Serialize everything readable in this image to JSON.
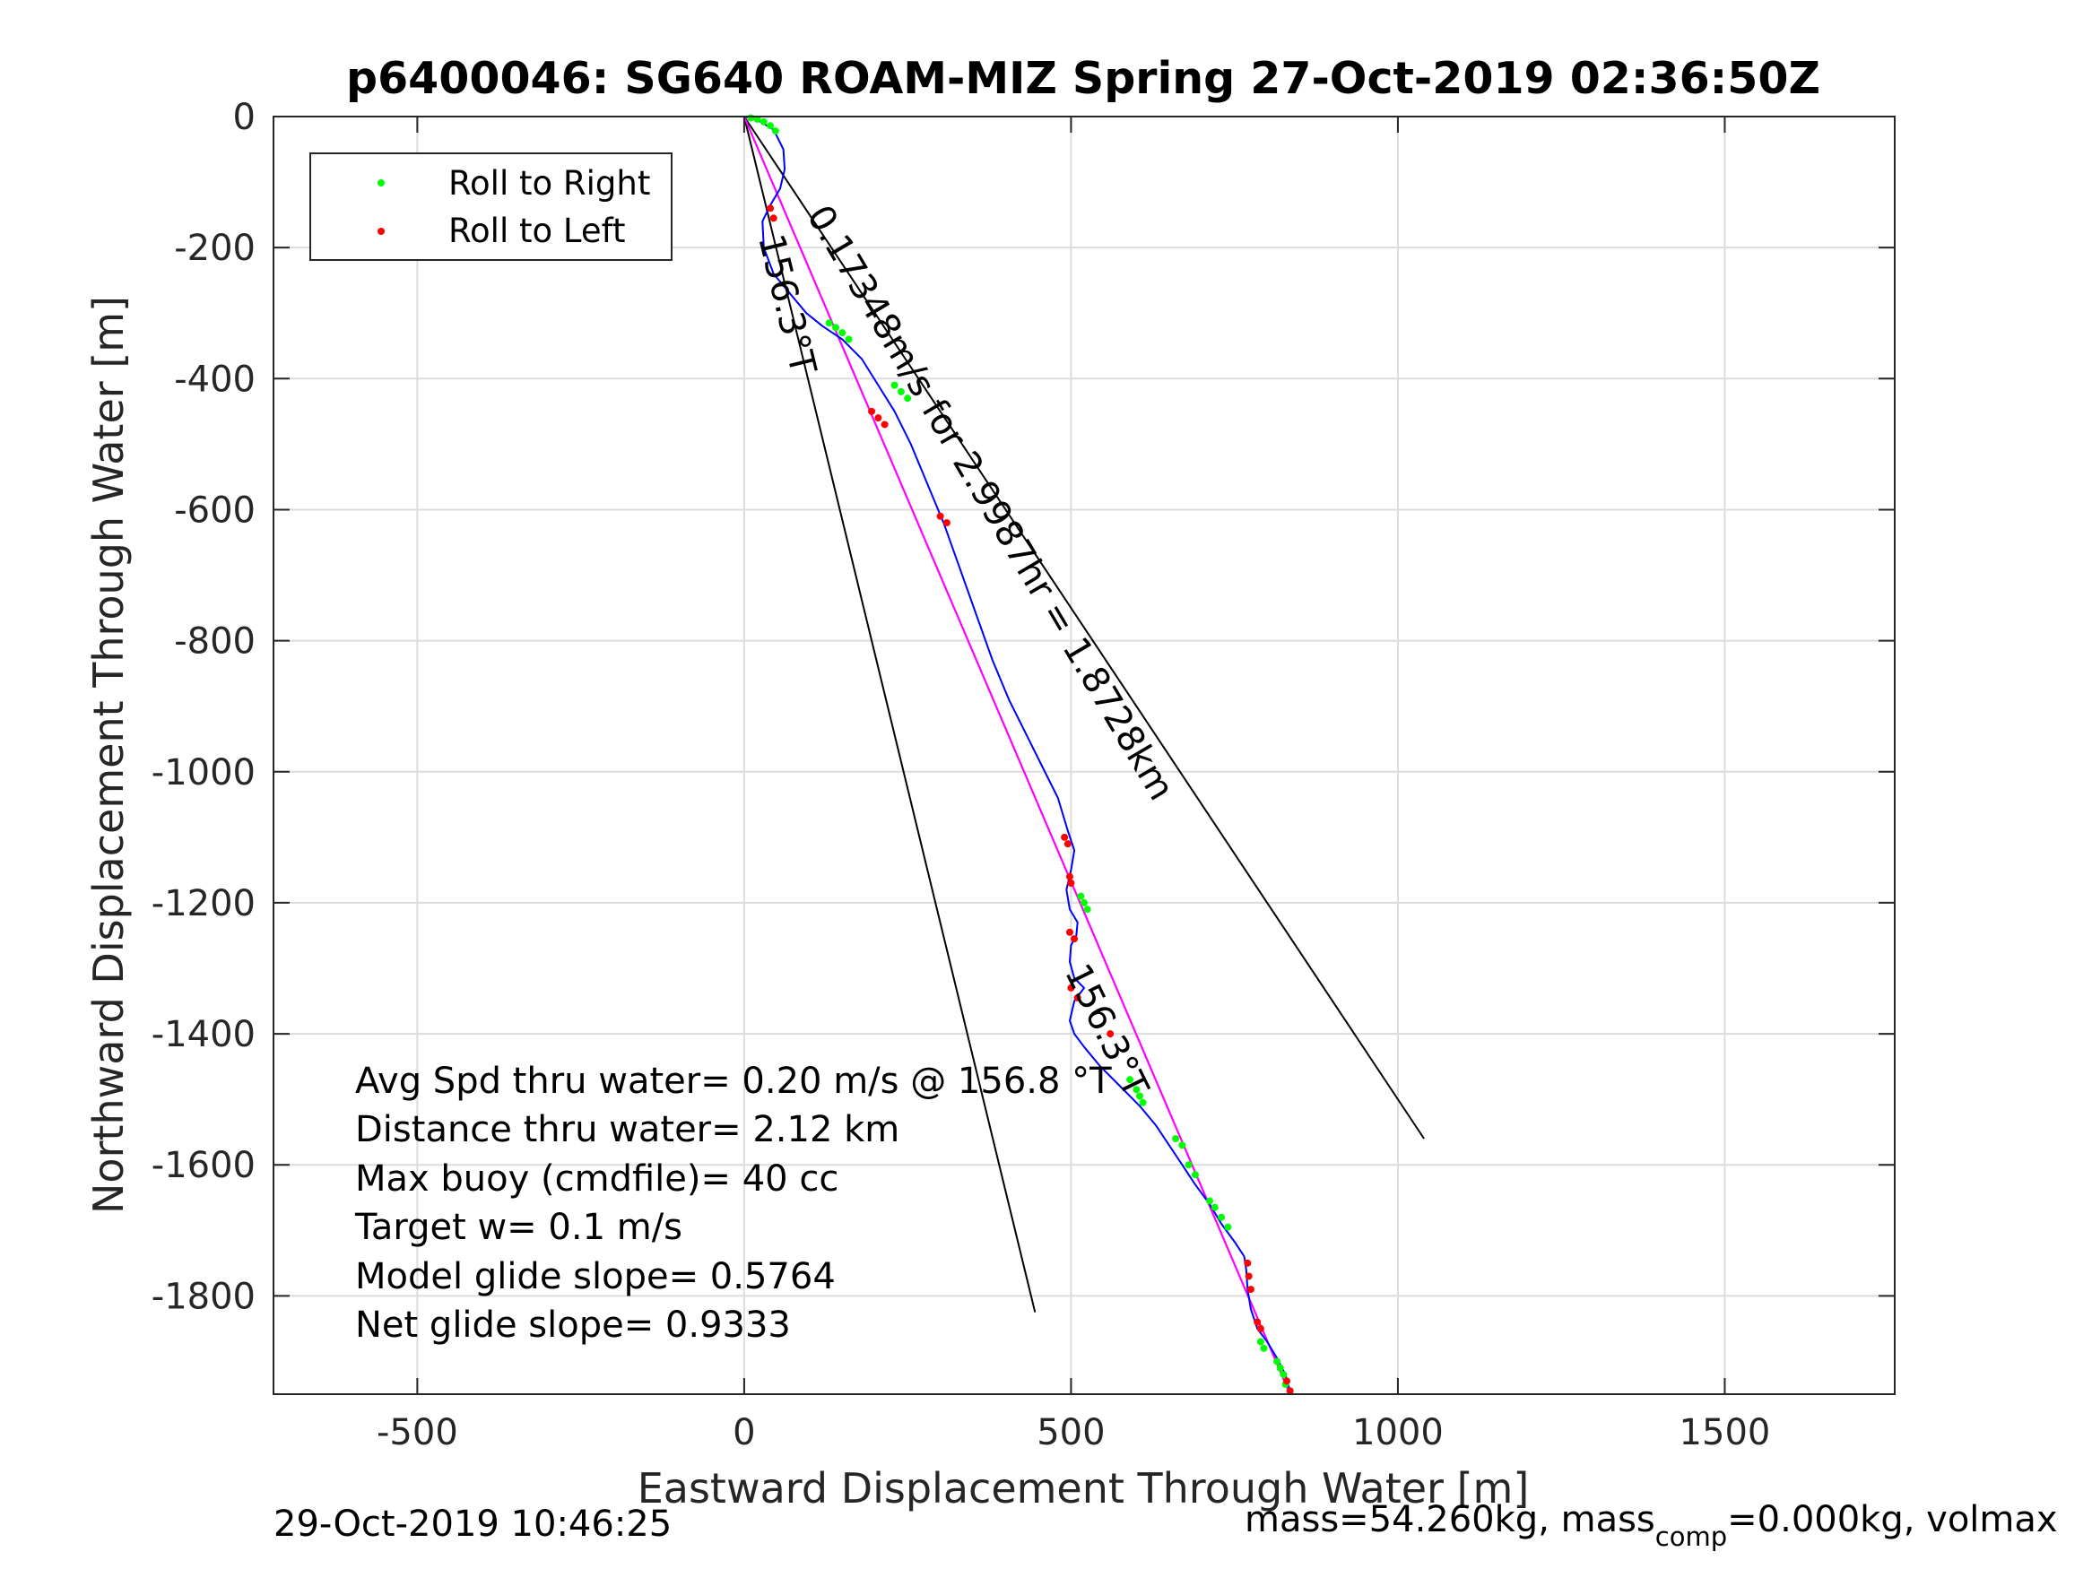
{
  "chart_data": {
    "type": "line",
    "title": "p6400046: SG640 ROAM-MIZ Spring 27-Oct-2019 02:36:50Z",
    "xlabel": "Eastward Displacement Through Water [m]",
    "ylabel": "Northward Displacement Through Water [m]",
    "xlim": [
      -720,
      1760
    ],
    "ylim": [
      -1950,
      0
    ],
    "grid": true,
    "xticks": [
      -500,
      0,
      500,
      1000,
      1500
    ],
    "xtick_labels": [
      "-500",
      "0",
      "500",
      "1000",
      "1500"
    ],
    "yticks": [
      0,
      -200,
      -400,
      -600,
      -800,
      -1000,
      -1200,
      -1400,
      -1600,
      -1800
    ],
    "ytick_labels": [
      "0",
      "-200",
      "-400",
      "-600",
      "-800",
      "-1000",
      "-1200",
      "-1400",
      "-1600",
      "-1800"
    ],
    "legend": {
      "placement": "top-left",
      "entries": [
        {
          "label": "Roll to Right",
          "color": "#00ff00"
        },
        {
          "label": "Roll to Left",
          "color": "#ff0000"
        }
      ]
    },
    "colors": {
      "track": "#0000ff",
      "heading_line": "#ff00ff",
      "cone_lines": "#000000",
      "grid": "#dcdcdc"
    },
    "series": [
      {
        "color": "#0000ff",
        "x": [
          0,
          20,
          45,
          60,
          62,
          55,
          40,
          28,
          30,
          45,
          70,
          95,
          120,
          150,
          180,
          205,
          230,
          255,
          280,
          305,
          330,
          355,
          380,
          405,
          430,
          455,
          480,
          495,
          505,
          500,
          493,
          498,
          510,
          508,
          500,
          498,
          505,
          520,
          505,
          498,
          505,
          520,
          545,
          575,
          605,
          630,
          650,
          670,
          690,
          712,
          730,
          752,
          765,
          768,
          770,
          775,
          785,
          800,
          815,
          828,
          835
        ],
        "y": [
          0,
          -5,
          -20,
          -50,
          -80,
          -110,
          -135,
          -160,
          -200,
          -240,
          -270,
          -300,
          -320,
          -340,
          -370,
          -410,
          -450,
          -500,
          -560,
          -620,
          -690,
          -760,
          -830,
          -890,
          -940,
          -990,
          -1040,
          -1090,
          -1120,
          -1150,
          -1180,
          -1210,
          -1230,
          -1250,
          -1265,
          -1290,
          -1315,
          -1330,
          -1350,
          -1380,
          -1400,
          -1420,
          -1450,
          -1480,
          -1510,
          -1540,
          -1570,
          -1600,
          -1630,
          -1660,
          -1690,
          -1720,
          -1740,
          -1760,
          -1790,
          -1820,
          -1850,
          -1870,
          -1895,
          -1920,
          -1945
        ]
      },
      {
        "color": "#ff00ff",
        "x": [
          0,
          835
        ],
        "y": [
          0,
          -1950
        ]
      },
      {
        "color": "#000000",
        "x": [
          0,
          1040
        ],
        "y": [
          0,
          -1560
        ]
      },
      {
        "color": "#000000",
        "x": [
          0,
          445
        ],
        "y": [
          0,
          -1825
        ]
      }
    ],
    "roll_right_points": {
      "x": [
        10,
        20,
        30,
        40,
        48,
        130,
        140,
        150,
        160,
        230,
        240,
        250,
        515,
        520,
        525,
        590,
        600,
        605,
        610,
        660,
        670,
        680,
        690,
        712,
        720,
        730,
        740,
        790,
        795,
        815,
        820,
        825,
        828
      ],
      "y": [
        -2,
        -4,
        -8,
        -14,
        -22,
        -315,
        -322,
        -330,
        -340,
        -410,
        -420,
        -430,
        -1190,
        -1200,
        -1210,
        -1470,
        -1485,
        -1495,
        -1505,
        -1560,
        -1570,
        -1600,
        -1615,
        -1655,
        -1665,
        -1680,
        -1695,
        -1870,
        -1880,
        -1900,
        -1910,
        -1920,
        -1935
      ]
    },
    "roll_left_points": {
      "x": [
        40,
        45,
        195,
        205,
        215,
        300,
        310,
        490,
        495,
        498,
        500,
        498,
        505,
        500,
        510,
        560,
        770,
        772,
        775,
        785,
        790,
        830,
        835
      ],
      "y": [
        -140,
        -155,
        -450,
        -460,
        -470,
        -610,
        -620,
        -1100,
        -1110,
        -1160,
        -1170,
        -1245,
        -1255,
        -1330,
        -1345,
        -1400,
        -1750,
        -1770,
        -1790,
        -1840,
        -1850,
        -1930,
        -1945
      ]
    },
    "rotated_labels": [
      {
        "text": "156.3°T",
        "x": 22,
        "y": -185
      },
      {
        "text": "0.17348m/s for 2.9987hr = 1.8728km",
        "x": 95,
        "y": -150
      },
      {
        "text": "156.3°T",
        "x": 490,
        "y": -1305
      }
    ],
    "annotations": [
      "Avg Spd thru water=  0.20 m/s @ 156.8 °T",
      "Distance thru water=  2.12 km",
      "Max buoy (cmdfile)= 40 cc",
      "Target w= 0.1 m/s",
      "Model glide slope= 0.5764",
      "Net glide slope= 0.9333"
    ],
    "footer": {
      "left": "29-Oct-2019 10:46:25",
      "right_prefix": "mass=54.260kg, mass",
      "right_sub": "comp",
      "right_suffix": "=0.000kg, volmax"
    }
  }
}
